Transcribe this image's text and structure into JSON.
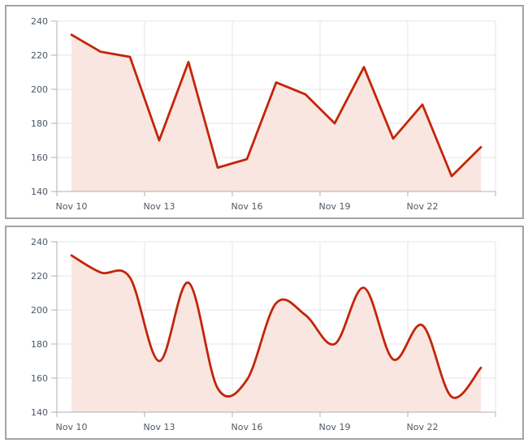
{
  "style": {
    "panel_border_color": "#a3a3a3",
    "plot_background": "#ffffff",
    "grid_color": "#e6e6e6",
    "axis_color": "#b0b0b0",
    "tick_color": "#b0b0b0",
    "label_color": "#4d5966"
  },
  "chart_data": [
    {
      "type": "line",
      "title": "",
      "categories": [
        "Nov 10",
        "Nov 11",
        "Nov 12",
        "Nov 13",
        "Nov 14",
        "Nov 15",
        "Nov 16",
        "Nov 17",
        "Nov 18",
        "Nov 19",
        "Nov 20",
        "Nov 21",
        "Nov 22",
        "Nov 23",
        "Nov 24"
      ],
      "values": [
        232,
        222,
        219,
        170,
        216,
        154,
        159,
        204,
        197,
        180,
        213,
        171,
        191,
        149,
        166
      ],
      "x_tick_labels": [
        "Nov 10",
        "Nov 13",
        "Nov 16",
        "Nov 19",
        "Nov 22"
      ],
      "x_tick_step": 3,
      "y_ticks": [
        140,
        160,
        180,
        200,
        220,
        240
      ],
      "ylim": [
        140,
        240
      ],
      "grid": true,
      "legend": "none",
      "series_color": "#c32508",
      "fill_color": "#f9e6e0"
    },
    {
      "type": "spline",
      "title": "",
      "categories": [
        "Nov 10",
        "Nov 11",
        "Nov 12",
        "Nov 13",
        "Nov 14",
        "Nov 15",
        "Nov 16",
        "Nov 17",
        "Nov 18",
        "Nov 19",
        "Nov 20",
        "Nov 21",
        "Nov 22",
        "Nov 23",
        "Nov 24"
      ],
      "values": [
        232,
        222,
        219,
        170,
        216,
        154,
        159,
        204,
        197,
        180,
        213,
        171,
        191,
        149,
        166
      ],
      "x_tick_labels": [
        "Nov 10",
        "Nov 13",
        "Nov 16",
        "Nov 19",
        "Nov 22"
      ],
      "x_tick_step": 3,
      "y_ticks": [
        140,
        160,
        180,
        200,
        220,
        240
      ],
      "ylim": [
        140,
        240
      ],
      "grid": true,
      "legend": "none",
      "series_color": "#c32508",
      "fill_color": "#f9e6e0"
    }
  ]
}
